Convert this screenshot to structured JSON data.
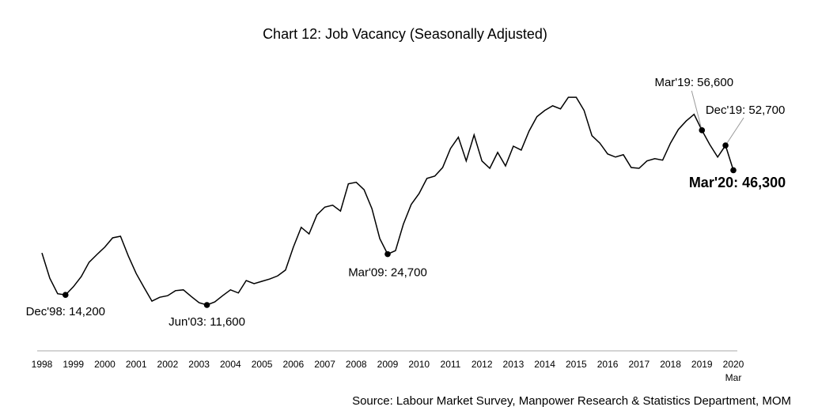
{
  "chart_data": {
    "type": "line",
    "title": "Chart 12: Job Vacancy (Seasonally Adjusted)",
    "source": "Source: Labour Market Survey, Manpower Research & Statistics Department, MOM",
    "categories": [
      "1998",
      null,
      null,
      null,
      "1999",
      null,
      null,
      null,
      "2000",
      null,
      null,
      null,
      "2001",
      null,
      null,
      null,
      "2002",
      null,
      null,
      null,
      "2003",
      null,
      null,
      null,
      "2004",
      null,
      null,
      null,
      "2005",
      null,
      null,
      null,
      "2006",
      null,
      null,
      null,
      "2007",
      null,
      null,
      null,
      "2008",
      null,
      null,
      null,
      "2009",
      null,
      null,
      null,
      "2010",
      null,
      null,
      null,
      "2011",
      null,
      null,
      null,
      "2012",
      null,
      null,
      null,
      "2013",
      null,
      null,
      null,
      "2014",
      null,
      null,
      null,
      "2015",
      null,
      null,
      null,
      "2016",
      null,
      null,
      null,
      "2017",
      null,
      null,
      null,
      "2018",
      null,
      null,
      null,
      "2019",
      null,
      null,
      null,
      "2020"
    ],
    "last_category_sublabel": "Mar",
    "color": "#000000",
    "values": [
      25000,
      18500,
      14500,
      14200,
      16300,
      18900,
      22600,
      24600,
      26500,
      28900,
      29300,
      24200,
      19700,
      16100,
      12600,
      13600,
      14000,
      15300,
      15500,
      13800,
      12200,
      11600,
      12400,
      14000,
      15500,
      14700,
      17900,
      17100,
      17700,
      18300,
      19100,
      20600,
      26500,
      31600,
      29900,
      34800,
      36800,
      37300,
      35800,
      42800,
      43200,
      41300,
      36400,
      28700,
      24700,
      25600,
      32400,
      37500,
      40300,
      44200,
      44800,
      47000,
      51900,
      54800,
      48700,
      55400,
      48700,
      46800,
      50900,
      47400,
      52500,
      51500,
      56400,
      60100,
      61700,
      62900,
      62100,
      65100,
      65100,
      61700,
      55200,
      53300,
      50500,
      49700,
      50300,
      47000,
      46800,
      48700,
      49300,
      48900,
      53300,
      56800,
      59000,
      60700,
      56600,
      52900,
      49700,
      52700,
      46300
    ],
    "ylim": [
      0,
      70000
    ],
    "annotations": [
      {
        "text": "Dec'98: 14,200",
        "value": 14200
      },
      {
        "text": "Jun'03: 11,600",
        "value": 11600
      },
      {
        "text": "Mar'09: 24,700",
        "value": 24700
      },
      {
        "text": "Mar'19: 56,600",
        "value": 56600
      },
      {
        "text": "Dec'19: 52,700",
        "value": 52700
      },
      {
        "text": "Mar'20: 46,300",
        "value": 46300,
        "bold": true
      }
    ]
  }
}
